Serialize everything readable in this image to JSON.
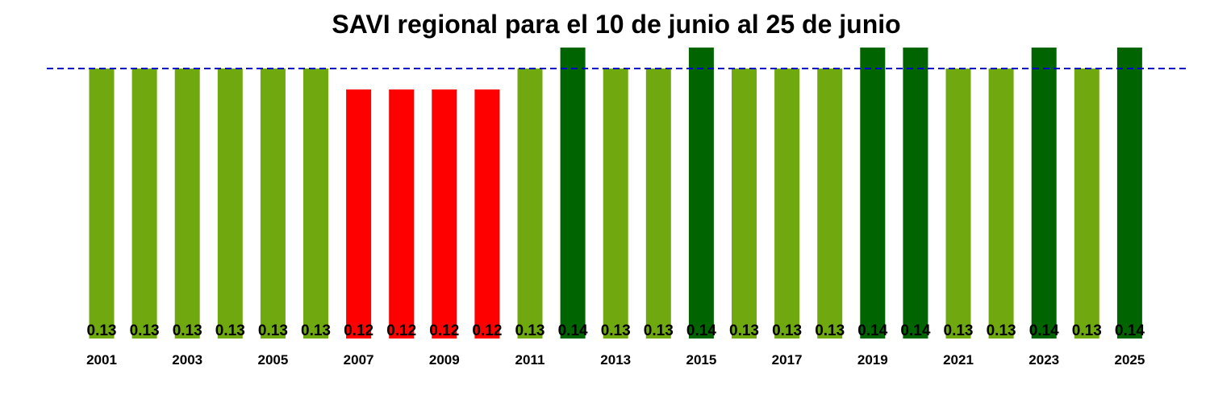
{
  "chart_data": {
    "type": "bar",
    "title": "SAVI regional para el 10 de junio al 25 de junio",
    "xlabel": "",
    "ylabel": "",
    "categories": [
      "2001",
      "2002",
      "2003",
      "2004",
      "2005",
      "2006",
      "2007",
      "2008",
      "2009",
      "2010",
      "2011",
      "2012",
      "2013",
      "2014",
      "2015",
      "2016",
      "2017",
      "2018",
      "2019",
      "2020",
      "2021",
      "2022",
      "2023",
      "2024",
      "2025"
    ],
    "x_tick_labels": [
      "2001",
      "2003",
      "2005",
      "2007",
      "2009",
      "2011",
      "2013",
      "2015",
      "2017",
      "2019",
      "2021",
      "2023",
      "2025"
    ],
    "values": [
      0.13,
      0.13,
      0.13,
      0.13,
      0.13,
      0.13,
      0.12,
      0.12,
      0.12,
      0.12,
      0.13,
      0.14,
      0.13,
      0.13,
      0.14,
      0.13,
      0.13,
      0.13,
      0.14,
      0.14,
      0.13,
      0.13,
      0.14,
      0.13,
      0.14
    ],
    "value_labels": [
      "0.13",
      "0.13",
      "0.13",
      "0.13",
      "0.13",
      "0.13",
      "0.12",
      "0.12",
      "0.12",
      "0.12",
      "0.13",
      "0.14",
      "0.13",
      "0.13",
      "0.14",
      "0.13",
      "0.13",
      "0.13",
      "0.14",
      "0.14",
      "0.13",
      "0.13",
      "0.14",
      "0.13",
      "0.14"
    ],
    "bar_colors": {
      "0.12": "#ff0000",
      "0.13": "#6fa80f",
      "0.14": "#006400"
    },
    "reference_line": {
      "value": 0.13,
      "color": "#0000cd",
      "style": "dashed"
    },
    "grid": false,
    "legend": "none"
  }
}
